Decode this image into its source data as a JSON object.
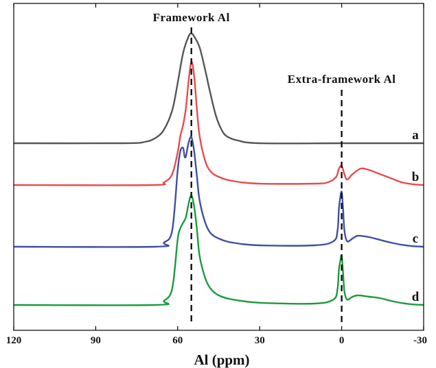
{
  "chart_data": {
    "type": "line",
    "xlabel": "Al (ppm)",
    "xlim": [
      120,
      -30
    ],
    "x_reversed": true,
    "xticks": [
      "120",
      "90",
      "60",
      "30",
      "0",
      "-30"
    ],
    "grid": false,
    "y_axis_visible": false,
    "annotations": [
      {
        "text": "Framework Al",
        "x": 55
      },
      {
        "text": "Extra-framework Al",
        "x": 0
      }
    ],
    "series": [
      {
        "name": "a",
        "color": "#555555",
        "x": [
          120,
          80,
          72,
          68,
          65,
          62,
          60,
          58,
          56,
          55,
          54,
          52,
          50,
          48,
          46,
          44,
          42,
          38,
          30,
          0,
          -30
        ],
        "y": [
          0,
          0,
          0.5,
          2,
          5,
          12,
          22,
          33,
          39,
          40,
          39,
          35,
          27,
          18,
          10,
          5,
          2.5,
          1,
          0,
          0,
          0
        ]
      },
      {
        "name": "b",
        "color": "#e84b4b",
        "x": [
          120,
          70,
          65,
          62,
          60,
          59,
          58,
          57,
          56,
          55,
          54,
          53,
          52,
          50,
          48,
          45,
          40,
          30,
          10,
          5,
          2,
          1,
          0,
          -1,
          -2,
          -4,
          -7,
          -10,
          -14,
          -18,
          -22,
          -26,
          -30
        ],
        "y": [
          0,
          0,
          1,
          4,
          12,
          18,
          22,
          28,
          38,
          45,
          40,
          28,
          18,
          9,
          5,
          3,
          1.5,
          0.5,
          0.5,
          1,
          3,
          6,
          7,
          4,
          2,
          4,
          6,
          5.5,
          4,
          2.5,
          1,
          0.3,
          0
        ]
      },
      {
        "name": "c",
        "color": "#3f4fa3",
        "x": [
          120,
          68,
          65,
          62,
          60,
          59,
          58,
          57.5,
          57,
          56,
          55,
          54,
          53,
          52,
          50,
          48,
          45,
          40,
          30,
          10,
          3,
          1.5,
          1,
          0.5,
          0,
          -0.5,
          -1,
          -2,
          -4,
          -6,
          -10,
          -14,
          -18,
          -22,
          -26,
          -30
        ],
        "y": [
          0,
          0,
          1.5,
          6,
          28,
          35,
          36,
          33,
          33,
          38,
          40,
          35,
          26,
          17,
          9,
          5,
          3,
          1.5,
          0.5,
          0.5,
          2,
          6,
          14,
          18,
          20,
          14,
          6,
          2,
          3,
          4,
          3.5,
          2.5,
          1.5,
          0.7,
          0.2,
          0
        ]
      },
      {
        "name": "d",
        "color": "#1a9b3c",
        "x": [
          120,
          68,
          65,
          62,
          60,
          59,
          58,
          57,
          56,
          55,
          54,
          53,
          52,
          50,
          48,
          45,
          40,
          30,
          10,
          3,
          1.5,
          1,
          0.5,
          0,
          -0.5,
          -1,
          -2,
          -4,
          -6,
          -10,
          -14,
          -18,
          -22,
          -26,
          -30
        ],
        "y": [
          0,
          0,
          1.5,
          6,
          24,
          28,
          30,
          32,
          37,
          40,
          36,
          28,
          18,
          10,
          6,
          3.5,
          2,
          0.8,
          0.5,
          2,
          6,
          13,
          16,
          18,
          12,
          5,
          2,
          3,
          3.5,
          3,
          2.5,
          1.5,
          0.7,
          0.2,
          0
        ]
      }
    ]
  }
}
